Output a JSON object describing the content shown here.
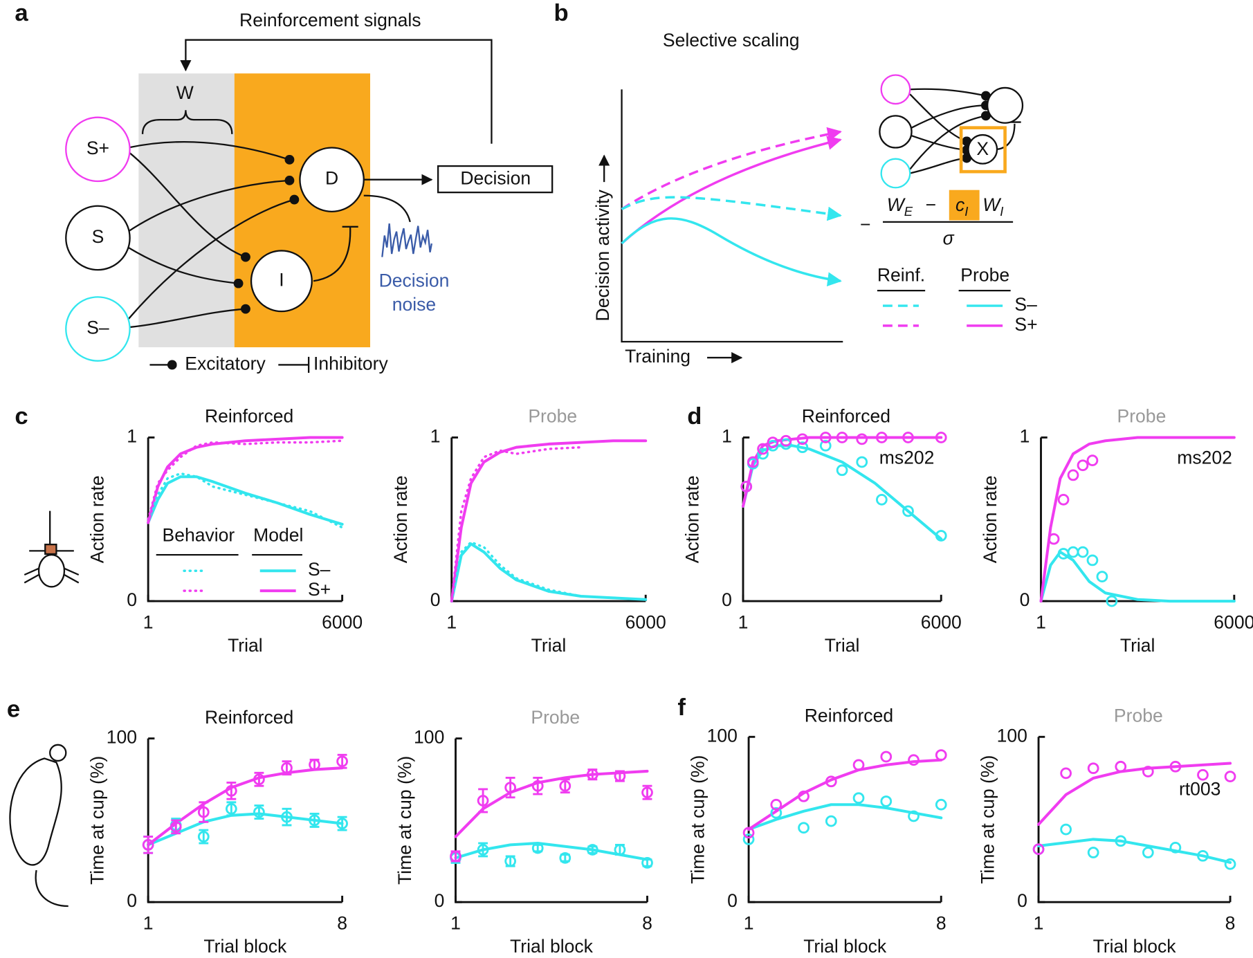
{
  "diagram_a": {
    "panel": "a",
    "feedback": "Reinforcement signals",
    "weights": "W",
    "inputs": [
      "S+",
      "S",
      "S–"
    ],
    "decision_unit": "D",
    "inhibitory_unit": "I",
    "output": "Decision",
    "noise": [
      "Decision",
      "noise"
    ],
    "legend": [
      "Excitatory",
      "Inhibitory"
    ]
  },
  "diagram_b": {
    "panel": "b",
    "title": "Selective scaling",
    "ylabel": "Decision activity",
    "xlabel": "Training",
    "gate": "X",
    "formula": {
      "minus": "−",
      "we": [
        "W",
        "E"
      ],
      "ci": [
        "c",
        "I"
      ],
      "wi": [
        "W",
        "I"
      ],
      "denominator": "σ"
    },
    "legend": {
      "headers": [
        "Reinf.",
        "Probe"
      ],
      "rows": [
        "S–",
        "S+"
      ]
    }
  },
  "chart_data": [
    {
      "type": "line",
      "panel": "c",
      "title": "Reinforced",
      "xlabel": "Trial",
      "ylabel": "Action rate",
      "x": [
        1,
        300,
        600,
        1000,
        1500,
        2000,
        3000,
        4000,
        5000,
        6000
      ],
      "xlim": [
        1,
        6000
      ],
      "xticks": [
        1,
        6000
      ],
      "ylim": [
        0,
        1
      ],
      "yticks": [
        0,
        1
      ],
      "legend": {
        "headers": [
          "Behavior",
          "Model"
        ]
      },
      "series": [
        {
          "name": "S–",
          "color": "#33e6ee",
          "style": "solid",
          "values": [
            0.48,
            0.62,
            0.72,
            0.76,
            0.76,
            0.73,
            0.66,
            0.6,
            0.53,
            0.47
          ]
        },
        {
          "name": "S+",
          "color": "#f03cf0",
          "style": "solid",
          "values": [
            0.48,
            0.7,
            0.82,
            0.9,
            0.94,
            0.96,
            0.98,
            0.99,
            1,
            1
          ]
        },
        {
          "color": "#33e6ee",
          "style": "dotted",
          "values": [
            0.5,
            0.65,
            0.75,
            0.78,
            0.76,
            0.7,
            0.65,
            0.6,
            0.55,
            0.45
          ]
        },
        {
          "color": "#f03cf0",
          "style": "dotted",
          "values": [
            0.5,
            0.72,
            0.8,
            0.88,
            0.95,
            0.97,
            0.96,
            0.97,
            0.97,
            0.98
          ]
        }
      ]
    },
    {
      "type": "line",
      "title": "Probe",
      "title_color": "#999999",
      "xlabel": "Trial",
      "ylabel": "Action rate",
      "x": [
        1,
        300,
        600,
        1000,
        1500,
        2000,
        3000,
        4000,
        5000,
        6000
      ],
      "xlim": [
        1,
        6000
      ],
      "xticks": [
        1,
        6000
      ],
      "ylim": [
        0,
        1
      ],
      "yticks": [
        0,
        1
      ],
      "series": [
        {
          "color": "#33e6ee",
          "style": "solid",
          "values": [
            0,
            0.28,
            0.35,
            0.3,
            0.2,
            0.13,
            0.06,
            0.03,
            0.02,
            0.01
          ]
        },
        {
          "color": "#f03cf0",
          "style": "solid",
          "values": [
            0,
            0.45,
            0.72,
            0.85,
            0.91,
            0.94,
            0.96,
            0.97,
            0.98,
            0.98
          ]
        },
        {
          "color": "#33e6ee",
          "style": "dotted",
          "values": [
            0,
            0.3,
            0.36,
            0.33,
            0.22,
            0.14,
            0.07,
            0.03,
            null,
            null
          ]
        },
        {
          "color": "#f03cf0",
          "style": "dotted",
          "values": [
            0,
            0.55,
            0.75,
            0.88,
            0.92,
            0.9,
            0.93,
            0.94,
            null,
            null
          ]
        }
      ]
    },
    {
      "type": "line",
      "panel": "d",
      "title": "Reinforced",
      "xlabel": "Trial",
      "ylabel": "Action rate",
      "annotation": "ms202",
      "x": [
        1,
        300,
        600,
        1000,
        1500,
        2000,
        3000,
        4000,
        5000,
        6000
      ],
      "xlim": [
        1,
        6000
      ],
      "xticks": [
        1,
        6000
      ],
      "ylim": [
        0,
        1
      ],
      "yticks": [
        0,
        1
      ],
      "series": [
        {
          "color": "#33e6ee",
          "style": "solid",
          "values": [
            0.58,
            0.83,
            0.92,
            0.95,
            0.95,
            0.93,
            0.85,
            0.72,
            0.55,
            0.38
          ]
        },
        {
          "color": "#f03cf0",
          "style": "solid",
          "values": [
            0.58,
            0.85,
            0.95,
            0.98,
            0.99,
            1,
            1,
            1,
            1,
            1
          ]
        },
        {
          "color": "#33e6ee",
          "style": "circles",
          "x": [
            100,
            300,
            600,
            900,
            1300,
            1800,
            2500,
            3000,
            3600,
            4200,
            5000,
            6000
          ],
          "values": [
            0.7,
            0.84,
            0.9,
            0.95,
            0.96,
            0.94,
            0.95,
            0.8,
            0.85,
            0.62,
            0.55,
            0.4
          ]
        },
        {
          "color": "#f03cf0",
          "style": "circles",
          "x": [
            100,
            300,
            600,
            900,
            1300,
            1800,
            2500,
            3000,
            3600,
            4200,
            5000,
            6000
          ],
          "values": [
            0.7,
            0.85,
            0.93,
            0.97,
            0.98,
            0.99,
            1,
            1,
            0.99,
            1,
            1,
            1
          ]
        }
      ]
    },
    {
      "type": "line",
      "title": "Probe",
      "title_color": "#999999",
      "xlabel": "Trial",
      "ylabel": "Action rate",
      "annotation": "ms202",
      "x": [
        1,
        300,
        600,
        1000,
        1500,
        2000,
        3000,
        4000,
        5000,
        6000
      ],
      "xlim": [
        1,
        6000
      ],
      "xticks": [
        1,
        6000
      ],
      "ylim": [
        0,
        1
      ],
      "yticks": [
        0,
        1
      ],
      "series": [
        {
          "color": "#33e6ee",
          "style": "solid",
          "values": [
            0,
            0.22,
            0.3,
            0.25,
            0.12,
            0.05,
            0.01,
            0,
            0,
            0
          ]
        },
        {
          "color": "#f03cf0",
          "style": "solid",
          "values": [
            0,
            0.45,
            0.75,
            0.9,
            0.96,
            0.98,
            1,
            1,
            1,
            1
          ]
        },
        {
          "color": "#33e6ee",
          "style": "circles",
          "x": [
            700,
            1000,
            1300,
            1600,
            1900,
            2200
          ],
          "values": [
            0.29,
            0.3,
            0.3,
            0.25,
            0.15,
            0
          ]
        },
        {
          "color": "#f03cf0",
          "style": "circles",
          "x": [
            400,
            700,
            1000,
            1300,
            1600
          ],
          "values": [
            0.38,
            0.62,
            0.77,
            0.83,
            0.86
          ]
        }
      ]
    },
    {
      "type": "line",
      "panel": "e",
      "title": "Reinforced",
      "xlabel": "Trial block",
      "ylabel": "Time at cup (%)",
      "x": [
        1,
        2,
        3,
        4,
        5,
        6,
        7,
        8
      ],
      "xlim": [
        1,
        8
      ],
      "xticks": [
        1,
        8
      ],
      "ylim": [
        0,
        100
      ],
      "yticks": [
        0,
        100
      ],
      "series": [
        {
          "color": "#33e6ee",
          "style": "solid",
          "values": [
            35,
            42,
            49,
            53,
            54,
            52,
            50,
            48
          ]
        },
        {
          "color": "#f03cf0",
          "style": "solid",
          "values": [
            35,
            48,
            60,
            70,
            76,
            79,
            81,
            82
          ]
        },
        {
          "color": "#33e6ee",
          "style": "circles",
          "values": [
            35,
            47,
            40,
            57,
            55,
            52,
            50,
            48
          ],
          "errors": [
            5,
            4,
            4,
            4,
            4,
            5,
            4,
            4
          ]
        },
        {
          "color": "#f03cf0",
          "style": "circles",
          "values": [
            35,
            46,
            55,
            68,
            75,
            82,
            84,
            86
          ],
          "errors": [
            5,
            4,
            6,
            5,
            4,
            4,
            3,
            4
          ]
        }
      ]
    },
    {
      "type": "line",
      "title": "Probe",
      "title_color": "#999999",
      "xlabel": "Trial block",
      "ylabel": "Time at cup (%)",
      "x": [
        1,
        2,
        3,
        4,
        5,
        6,
        7,
        8
      ],
      "xlim": [
        1,
        8
      ],
      "xticks": [
        1,
        8
      ],
      "ylim": [
        0,
        100
      ],
      "yticks": [
        0,
        100
      ],
      "series": [
        {
          "color": "#33e6ee",
          "style": "solid",
          "values": [
            27,
            32,
            35,
            36,
            34,
            32,
            29,
            26
          ]
        },
        {
          "color": "#f03cf0",
          "style": "solid",
          "values": [
            40,
            57,
            67,
            73,
            76,
            78,
            79,
            80
          ]
        },
        {
          "color": "#33e6ee",
          "style": "circles",
          "values": [
            27,
            32,
            25,
            33,
            27,
            32,
            32,
            24
          ],
          "errors": [
            3,
            4,
            3,
            2,
            2,
            2,
            3,
            2
          ]
        },
        {
          "color": "#f03cf0",
          "style": "circles",
          "values": [
            28,
            62,
            70,
            71,
            71,
            78,
            77,
            67
          ],
          "errors": [
            3,
            7,
            6,
            5,
            4,
            3,
            3,
            4
          ]
        }
      ]
    },
    {
      "type": "line",
      "panel": "f",
      "title": "Reinforced",
      "xlabel": "Trial block",
      "ylabel": "Time at cup (%)",
      "x": [
        1,
        2,
        3,
        4,
        5,
        6,
        7,
        8
      ],
      "xlim": [
        1,
        8
      ],
      "xticks": [
        1,
        8
      ],
      "ylim": [
        0,
        100
      ],
      "yticks": [
        0,
        100
      ],
      "series": [
        {
          "color": "#33e6ee",
          "style": "solid",
          "values": [
            44,
            50,
            55,
            59,
            59,
            57,
            54,
            51
          ]
        },
        {
          "color": "#f03cf0",
          "style": "solid",
          "values": [
            44,
            55,
            66,
            74,
            80,
            83,
            85,
            86
          ]
        },
        {
          "color": "#33e6ee",
          "style": "circles",
          "values": [
            38,
            54,
            45,
            49,
            63,
            61,
            52,
            59
          ]
        },
        {
          "color": "#f03cf0",
          "style": "circles",
          "values": [
            42,
            59,
            64,
            73,
            83,
            88,
            86,
            89
          ]
        }
      ]
    },
    {
      "type": "line",
      "title": "Probe",
      "title_color": "#999999",
      "xlabel": "Trial block",
      "ylabel": "Time at cup (%)",
      "annotation": "rt003",
      "x": [
        1,
        2,
        3,
        4,
        5,
        6,
        7,
        8
      ],
      "xlim": [
        1,
        8
      ],
      "xticks": [
        1,
        8
      ],
      "ylim": [
        0,
        100
      ],
      "yticks": [
        0,
        100
      ],
      "series": [
        {
          "color": "#33e6ee",
          "style": "solid",
          "values": [
            34,
            36,
            38,
            37,
            34,
            31,
            28,
            24
          ]
        },
        {
          "color": "#f03cf0",
          "style": "solid",
          "values": [
            47,
            65,
            75,
            79,
            81,
            82,
            83,
            84
          ]
        },
        {
          "color": "#33e6ee",
          "style": "circles",
          "values": [
            32,
            44,
            30,
            37,
            30,
            33,
            28,
            23
          ]
        },
        {
          "color": "#f03cf0",
          "style": "circles",
          "values": [
            32,
            78,
            81,
            82,
            79,
            82,
            77,
            76
          ]
        }
      ]
    }
  ]
}
